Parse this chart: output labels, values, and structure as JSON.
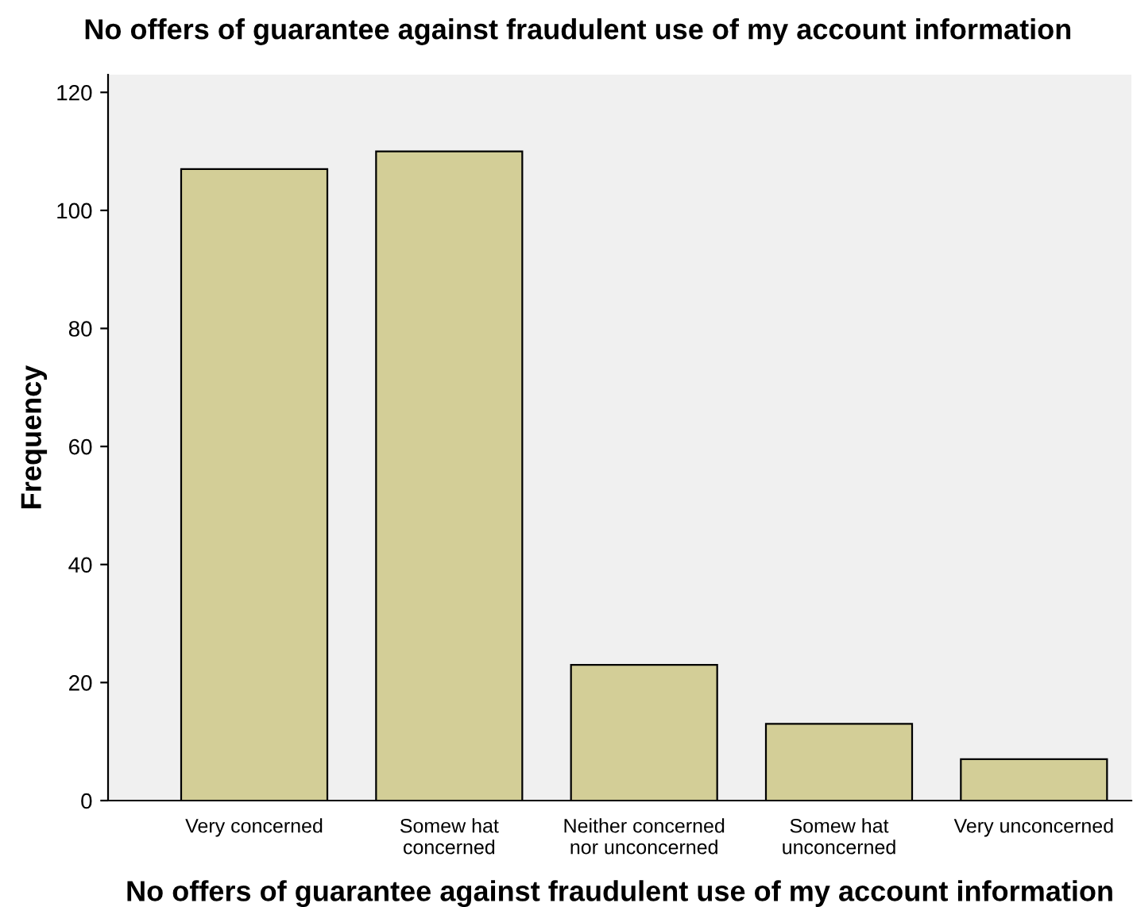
{
  "chart_data": {
    "type": "bar",
    "title": "No offers of guarantee against fraudulent use of my account information",
    "xlabel": "No offers of guarantee against fraudulent use of my account information",
    "ylabel": "Frequency",
    "categories": [
      "Very concerned",
      "Somew hat\nconcerned",
      "Neither concerned\nnor unconcerned",
      "Somew hat\nunconcerned",
      "Very unconcerned"
    ],
    "values": [
      107,
      110,
      23,
      13,
      7
    ],
    "color": "#d3ce97",
    "ylim": [
      0,
      123
    ],
    "yticks": [
      0,
      20,
      40,
      60,
      80,
      100,
      120
    ],
    "grid": false,
    "legend": false
  }
}
